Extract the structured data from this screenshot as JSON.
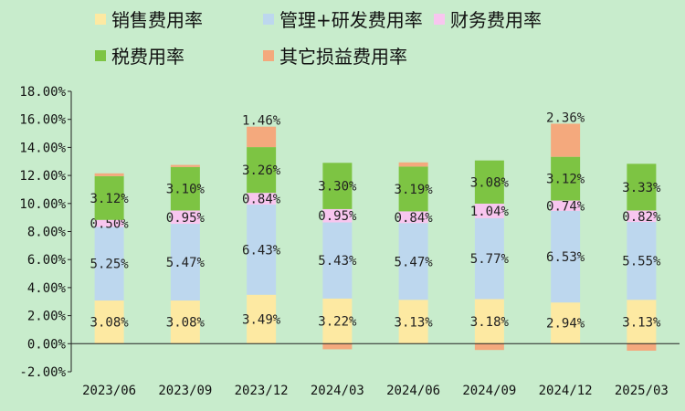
{
  "chart_data": {
    "type": "bar",
    "stacked": true,
    "categories": [
      "2023/06",
      "2023/09",
      "2023/12",
      "2024/03",
      "2024/06",
      "2024/09",
      "2024/12",
      "2025/03"
    ],
    "series": [
      {
        "name": "销售费用率",
        "color": "#fde9a2",
        "values": [
          3.08,
          3.08,
          3.49,
          3.22,
          3.13,
          3.18,
          2.94,
          3.13
        ],
        "labels": [
          "3.08%",
          "3.08%",
          "3.49%",
          "3.22%",
          "3.13%",
          "3.18%",
          "2.94%",
          "3.13%"
        ]
      },
      {
        "name": "管理+研发费用率",
        "color": "#bdd7ee",
        "values": [
          5.25,
          5.47,
          6.43,
          5.43,
          5.47,
          5.77,
          6.53,
          5.55
        ],
        "labels": [
          "5.25%",
          "5.47%",
          "6.43%",
          "5.43%",
          "5.47%",
          "5.77%",
          "6.53%",
          "5.55%"
        ]
      },
      {
        "name": "财务费用率",
        "color": "#f8c6ef",
        "values": [
          0.5,
          0.95,
          0.84,
          0.95,
          0.84,
          1.04,
          0.74,
          0.82
        ],
        "labels": [
          "0.50%",
          "0.95%",
          "0.84%",
          "0.95%",
          "0.84%",
          "1.04%",
          "0.74%",
          "0.82%"
        ]
      },
      {
        "name": "税费用率",
        "color": "#7dc443",
        "values": [
          3.12,
          3.1,
          3.26,
          3.3,
          3.19,
          3.08,
          3.12,
          3.33
        ],
        "labels": [
          "3.12%",
          "3.10%",
          "3.26%",
          "3.30%",
          "3.19%",
          "3.08%",
          "3.12%",
          "3.33%"
        ]
      },
      {
        "name": "其它损益费用率",
        "color": "#f4a97d",
        "values": [
          0.2,
          0.15,
          1.46,
          -0.4,
          0.3,
          -0.45,
          2.36,
          -0.5
        ],
        "labels": [
          "",
          "",
          "1.46%",
          "",
          "",
          "",
          "2.36%",
          ""
        ]
      }
    ],
    "yticks": [
      "-2.00%",
      "0.00%",
      "2.00%",
      "4.00%",
      "6.00%",
      "8.00%",
      "10.00%",
      "12.00%",
      "14.00%",
      "16.00%",
      "18.00%"
    ],
    "ylim": [
      -2,
      18
    ],
    "legend_position": "top",
    "grid": false
  }
}
